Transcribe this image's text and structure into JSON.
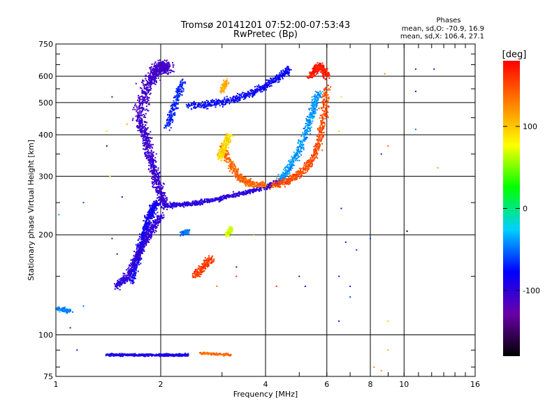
{
  "chart_data": {
    "type": "scatter",
    "title": "Tromsø 20141201 07:52:00-07:53:43",
    "subtitle": "RwPretec (Bp)",
    "xlabel": "Frequency [MHz]",
    "ylabel": "Stationary phase Virtual Height [km]",
    "x_scale": "log",
    "y_scale": "log",
    "xlim": [
      1,
      16
    ],
    "ylim": [
      75,
      750
    ],
    "x_ticks": [
      1,
      2,
      4,
      6,
      8,
      10,
      16
    ],
    "x_tick_labels": [
      "1",
      "2",
      "4",
      "6",
      "8",
      "10",
      "16"
    ],
    "y_ticks": [
      75,
      100,
      200,
      300,
      400,
      500,
      600,
      750
    ],
    "y_tick_labels": [
      "75",
      "100",
      "200",
      "300",
      "400",
      "500",
      "600",
      "750"
    ],
    "grid": true,
    "stats": {
      "heading": "Phases",
      "line_o": "mean, sd,O: -70.9, 16.9",
      "line_x": "mean, sd,X: 106.4, 27.1"
    },
    "colorbar": {
      "label": "[deg]",
      "range": [
        -180,
        180
      ],
      "ticks": [
        100,
        0,
        -100
      ],
      "tick_labels": [
        "100",
        "0",
        "-100"
      ],
      "colormap": [
        "#000000",
        "#6a00a8",
        "#0000ff",
        "#00d0ff",
        "#00ff00",
        "#ffff00",
        "#ff8000",
        "#ff0000"
      ]
    },
    "traces": [
      {
        "x": [
          1.72,
          1.78,
          1.85,
          1.9,
          1.95,
          2.0,
          2.05,
          2.1
        ],
        "y": [
          440,
          500,
          560,
          600,
          630,
          640,
          640,
          635
        ],
        "phase": -110,
        "spread": 0.05
      },
      {
        "x": [
          1.75,
          1.8,
          1.85,
          1.9,
          1.95,
          2.0,
          2.05
        ],
        "y": [
          440,
          400,
          360,
          320,
          290,
          265,
          245
        ],
        "phase": -105,
        "spread": 0.04
      },
      {
        "x": [
          2.05,
          2.3,
          2.6,
          3.0,
          3.5,
          4.0,
          4.4
        ],
        "y": [
          245,
          246,
          250,
          258,
          268,
          278,
          290
        ],
        "phase": -95,
        "spread": 0.02
      },
      {
        "x": [
          4.4,
          4.7,
          5.0,
          5.3,
          5.5,
          5.7
        ],
        "y": [
          290,
          320,
          360,
          420,
          480,
          540
        ],
        "phase": -40,
        "spread": 0.03
      },
      {
        "x": [
          2.4,
          2.8,
          3.2,
          3.6,
          4.0,
          4.4,
          4.7
        ],
        "y": [
          490,
          495,
          510,
          530,
          560,
          600,
          630
        ],
        "phase": -80,
        "spread": 0.03
      },
      {
        "x": [
          1.65,
          1.7,
          1.75,
          1.8,
          1.85,
          1.9,
          1.95
        ],
        "y": [
          145,
          165,
          185,
          205,
          225,
          240,
          250
        ],
        "phase": -85,
        "spread": 0.03
      },
      {
        "x": [
          1.5,
          1.6,
          1.7,
          1.8,
          1.9,
          2.0
        ],
        "y": [
          140,
          150,
          170,
          190,
          210,
          230
        ],
        "phase": -100,
        "spread": 0.03
      },
      {
        "x": [
          2.1,
          2.2,
          2.3
        ],
        "y": [
          420,
          500,
          580
        ],
        "phase": -70,
        "spread": 0.03
      },
      {
        "x": [
          3.0,
          3.2,
          3.4,
          3.6,
          4.0
        ],
        "y": [
          370,
          320,
          295,
          285,
          282
        ],
        "phase": 140,
        "spread": 0.03
      },
      {
        "x": [
          4.2,
          4.6,
          5.0,
          5.4,
          5.7,
          5.9,
          6.0
        ],
        "y": [
          280,
          290,
          305,
          330,
          380,
          460,
          560
        ],
        "phase": 150,
        "spread": 0.03
      },
      {
        "x": [
          5.4,
          5.6,
          5.8,
          6.0
        ],
        "y": [
          600,
          640,
          640,
          600
        ],
        "phase": 170,
        "spread": 0.03
      },
      {
        "x": [
          2.95,
          3.05,
          3.15
        ],
        "y": [
          340,
          370,
          400
        ],
        "phase": 95,
        "spread": 0.03
      },
      {
        "x": [
          3.0,
          3.1
        ],
        "y": [
          540,
          580
        ],
        "phase": 110,
        "spread": 0.02
      },
      {
        "x": [
          2.5,
          2.65,
          2.8
        ],
        "y": [
          150,
          160,
          170
        ],
        "phase": 155,
        "spread": 0.03
      },
      {
        "x": [
          2.3,
          2.4
        ],
        "y": [
          202,
          205
        ],
        "phase": -50,
        "spread": 0.02
      },
      {
        "x": [
          3.1,
          3.2
        ],
        "y": [
          200,
          210
        ],
        "phase": 70,
        "spread": 0.02
      },
      {
        "x": [
          1.0,
          1.1
        ],
        "y": [
          120,
          118
        ],
        "phase": -45,
        "spread": 0.02
      },
      {
        "x": [
          1.4,
          1.6,
          1.8,
          2.0,
          2.2,
          2.4
        ],
        "y": [
          87,
          87,
          87,
          87,
          87,
          87
        ],
        "phase": -90,
        "spread": 0.01
      },
      {
        "x": [
          2.6,
          3.2
        ],
        "y": [
          88,
          87
        ],
        "phase": 140,
        "spread": 0.01
      }
    ],
    "scatter": [
      {
        "x": 12.2,
        "y": 630,
        "phase": -110
      },
      {
        "x": 10.8,
        "y": 630,
        "phase": -120
      },
      {
        "x": 10.8,
        "y": 540,
        "phase": -90
      },
      {
        "x": 10.8,
        "y": 415,
        "phase": -50
      },
      {
        "x": 8.6,
        "y": 350,
        "phase": -100
      },
      {
        "x": 9.0,
        "y": 370,
        "phase": 140
      },
      {
        "x": 12.5,
        "y": 318,
        "phase": 120
      },
      {
        "x": 10.2,
        "y": 205,
        "phase": -180
      },
      {
        "x": 8.0,
        "y": 195,
        "phase": -60
      },
      {
        "x": 6.6,
        "y": 520,
        "phase": 60
      },
      {
        "x": 6.5,
        "y": 410,
        "phase": 60
      },
      {
        "x": 6.6,
        "y": 240,
        "phase": -80
      },
      {
        "x": 6.8,
        "y": 190,
        "phase": -90
      },
      {
        "x": 7.3,
        "y": 180,
        "phase": -60
      },
      {
        "x": 6.5,
        "y": 150,
        "phase": -100
      },
      {
        "x": 7.0,
        "y": 140,
        "phase": -70
      },
      {
        "x": 6.5,
        "y": 110,
        "phase": -90
      },
      {
        "x": 5.0,
        "y": 150,
        "phase": -110
      },
      {
        "x": 5.2,
        "y": 140,
        "phase": -100
      },
      {
        "x": 4.3,
        "y": 140,
        "phase": 160
      },
      {
        "x": 3.3,
        "y": 150,
        "phase": 160
      },
      {
        "x": 2.9,
        "y": 140,
        "phase": 130
      },
      {
        "x": 1.4,
        "y": 410,
        "phase": 90
      },
      {
        "x": 1.45,
        "y": 520,
        "phase": -130
      },
      {
        "x": 1.4,
        "y": 370,
        "phase": -150
      },
      {
        "x": 1.43,
        "y": 300,
        "phase": 80
      },
      {
        "x": 1.55,
        "y": 260,
        "phase": -90
      },
      {
        "x": 1.2,
        "y": 250,
        "phase": -60
      },
      {
        "x": 1.02,
        "y": 230,
        "phase": -40
      },
      {
        "x": 1.5,
        "y": 175,
        "phase": -110
      },
      {
        "x": 1.45,
        "y": 195,
        "phase": -140
      },
      {
        "x": 1.7,
        "y": 570,
        "phase": -100
      },
      {
        "x": 1.6,
        "y": 430,
        "phase": 110
      },
      {
        "x": 8.8,
        "y": 610,
        "phase": 120
      },
      {
        "x": 9.0,
        "y": 90,
        "phase": 110
      },
      {
        "x": 9.0,
        "y": 110,
        "phase": 100
      },
      {
        "x": 8.6,
        "y": 78,
        "phase": 120
      },
      {
        "x": 8.2,
        "y": 80,
        "phase": 130
      },
      {
        "x": 7.0,
        "y": 130,
        "phase": -60
      },
      {
        "x": 5.7,
        "y": 480,
        "phase": 170
      },
      {
        "x": 6.0,
        "y": 615,
        "phase": 150
      },
      {
        "x": 1.2,
        "y": 122,
        "phase": -50
      },
      {
        "x": 1.1,
        "y": 105,
        "phase": -130
      },
      {
        "x": 1.15,
        "y": 90,
        "phase": -110
      },
      {
        "x": 3.7,
        "y": 200,
        "phase": 120
      },
      {
        "x": 3.3,
        "y": 160,
        "phase": -140
      }
    ]
  }
}
